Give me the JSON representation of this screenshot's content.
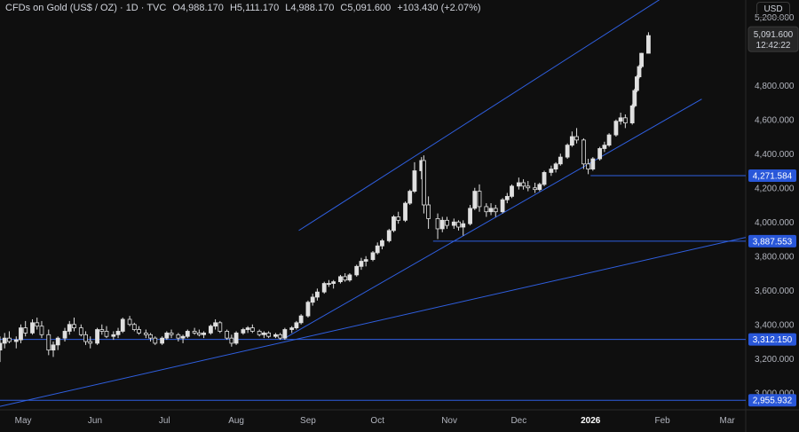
{
  "header": {
    "symbol": "CFDs on Gold (US$ / OZ) · 1D · TVC",
    "open": "O4,988.170",
    "high": "H5,111.170",
    "low": "L4,988.170",
    "close": "C5,091.600",
    "change": "+103.430 (+2.07%)"
  },
  "currency_button": "USD",
  "colors": {
    "background": "#0f0f0f",
    "candle": "#e0e0e0",
    "line": "#2f5fe0",
    "label_bg": "#2957d9",
    "grid_text": "#b2b5be"
  },
  "last_price": {
    "value": "5,091.600",
    "countdown": "12:42:22"
  },
  "price_labels": [
    "4,271.584",
    "3,887.553",
    "3,312.150",
    "2,955.932"
  ],
  "chart_data": {
    "type": "candlestick",
    "title": "",
    "xlabel": "",
    "ylabel": "",
    "ylim": [
      2900,
      5300
    ],
    "xlim": [
      "2025-04-21",
      "2026-03-09"
    ],
    "y_ticks": [
      {
        "value": 3000,
        "label": "3,000.000"
      },
      {
        "value": 3200,
        "label": "3,200.000"
      },
      {
        "value": 3400,
        "label": "3,400.000"
      },
      {
        "value": 3600,
        "label": "3,600.000"
      },
      {
        "value": 3800,
        "label": "3,800.000"
      },
      {
        "value": 4000,
        "label": "4,000.000"
      },
      {
        "value": 4200,
        "label": "4,200.000"
      },
      {
        "value": 4400,
        "label": "4,400.000"
      },
      {
        "value": 4600,
        "label": "4,600.000"
      },
      {
        "value": 4800,
        "label": "4,800.000"
      },
      {
        "value": 5200,
        "label": "5,200.000"
      }
    ],
    "x_ticks": [
      {
        "date": "2025-05-01",
        "label": "May"
      },
      {
        "date": "2025-06-01",
        "label": "Jun"
      },
      {
        "date": "2025-07-01",
        "label": "Jul"
      },
      {
        "date": "2025-08-01",
        "label": "Aug"
      },
      {
        "date": "2025-09-01",
        "label": "Sep"
      },
      {
        "date": "2025-10-01",
        "label": "Oct"
      },
      {
        "date": "2025-11-01",
        "label": "Nov"
      },
      {
        "date": "2025-12-01",
        "label": "Dec"
      },
      {
        "date": "2026-01-01",
        "label": "2026"
      },
      {
        "date": "2026-02-01",
        "label": "Feb"
      },
      {
        "date": "2026-03-01",
        "label": "Mar"
      }
    ],
    "horizontal_levels": [
      {
        "value": 4271.584,
        "from": "2026-01-01"
      },
      {
        "value": 3887.553,
        "from": "2025-10-25"
      },
      {
        "value": 3312.15,
        "from": "2025-04-21"
      },
      {
        "value": 2955.932,
        "from": "2025-04-21"
      }
    ],
    "trendlines": [
      {
        "name": "channel-top",
        "start": [
          "2025-08-28",
          3950
        ],
        "end": [
          "2026-02-03",
          5330
        ]
      },
      {
        "name": "channel-bottom",
        "start": [
          "2025-08-22",
          3320
        ],
        "end": [
          "2026-02-18",
          4720
        ]
      },
      {
        "name": "long-support",
        "start": [
          "2025-04-21",
          2920
        ],
        "end": [
          "2026-03-09",
          3910
        ]
      }
    ],
    "candles": [
      [
        "2025-04-21",
        3250,
        3330,
        3180,
        3290
      ],
      [
        "2025-04-23",
        3290,
        3350,
        3260,
        3320
      ],
      [
        "2025-04-25",
        3320,
        3360,
        3290,
        3300
      ],
      [
        "2025-04-28",
        3300,
        3330,
        3260,
        3310
      ],
      [
        "2025-04-30",
        3310,
        3400,
        3290,
        3380
      ],
      [
        "2025-05-02",
        3380,
        3420,
        3330,
        3350
      ],
      [
        "2025-05-05",
        3350,
        3430,
        3340,
        3410
      ],
      [
        "2025-05-07",
        3410,
        3440,
        3370,
        3390
      ],
      [
        "2025-05-09",
        3390,
        3420,
        3320,
        3340
      ],
      [
        "2025-05-12",
        3340,
        3370,
        3220,
        3250
      ],
      [
        "2025-05-14",
        3250,
        3300,
        3210,
        3280
      ],
      [
        "2025-05-16",
        3280,
        3330,
        3250,
        3320
      ],
      [
        "2025-05-19",
        3320,
        3380,
        3300,
        3360
      ],
      [
        "2025-05-21",
        3360,
        3420,
        3340,
        3400
      ],
      [
        "2025-05-23",
        3400,
        3440,
        3360,
        3380
      ],
      [
        "2025-05-26",
        3380,
        3400,
        3330,
        3340
      ],
      [
        "2025-05-28",
        3340,
        3360,
        3280,
        3300
      ],
      [
        "2025-05-30",
        3300,
        3330,
        3260,
        3290
      ],
      [
        "2025-06-02",
        3290,
        3380,
        3280,
        3370
      ],
      [
        "2025-06-04",
        3370,
        3400,
        3340,
        3360
      ],
      [
        "2025-06-06",
        3360,
        3390,
        3320,
        3330
      ],
      [
        "2025-06-09",
        3330,
        3360,
        3310,
        3340
      ],
      [
        "2025-06-11",
        3340,
        3380,
        3320,
        3360
      ],
      [
        "2025-06-13",
        3360,
        3440,
        3350,
        3430
      ],
      [
        "2025-06-16",
        3430,
        3450,
        3390,
        3400
      ],
      [
        "2025-06-18",
        3400,
        3410,
        3360,
        3370
      ],
      [
        "2025-06-20",
        3370,
        3390,
        3340,
        3350
      ],
      [
        "2025-06-23",
        3350,
        3370,
        3320,
        3340
      ],
      [
        "2025-06-25",
        3340,
        3350,
        3300,
        3320
      ],
      [
        "2025-06-27",
        3320,
        3330,
        3280,
        3290
      ],
      [
        "2025-06-30",
        3290,
        3330,
        3280,
        3320
      ],
      [
        "2025-07-02",
        3320,
        3360,
        3310,
        3350
      ],
      [
        "2025-07-04",
        3350,
        3370,
        3320,
        3340
      ],
      [
        "2025-07-07",
        3340,
        3350,
        3300,
        3320
      ],
      [
        "2025-07-09",
        3320,
        3340,
        3290,
        3330
      ],
      [
        "2025-07-11",
        3330,
        3370,
        3320,
        3360
      ],
      [
        "2025-07-14",
        3360,
        3380,
        3340,
        3350
      ],
      [
        "2025-07-16",
        3350,
        3370,
        3330,
        3340
      ],
      [
        "2025-07-18",
        3340,
        3360,
        3320,
        3350
      ],
      [
        "2025-07-21",
        3350,
        3400,
        3340,
        3390
      ],
      [
        "2025-07-23",
        3390,
        3430,
        3370,
        3410
      ],
      [
        "2025-07-25",
        3410,
        3420,
        3350,
        3360
      ],
      [
        "2025-07-28",
        3360,
        3370,
        3310,
        3320
      ],
      [
        "2025-07-30",
        3320,
        3340,
        3270,
        3290
      ],
      [
        "2025-08-01",
        3290,
        3360,
        3280,
        3350
      ],
      [
        "2025-08-04",
        3350,
        3380,
        3340,
        3370
      ],
      [
        "2025-08-06",
        3370,
        3390,
        3350,
        3380
      ],
      [
        "2025-08-08",
        3380,
        3400,
        3350,
        3360
      ],
      [
        "2025-08-11",
        3360,
        3370,
        3330,
        3340
      ],
      [
        "2025-08-13",
        3340,
        3360,
        3320,
        3350
      ],
      [
        "2025-08-15",
        3350,
        3360,
        3320,
        3330
      ],
      [
        "2025-08-18",
        3330,
        3350,
        3320,
        3340
      ],
      [
        "2025-08-20",
        3340,
        3350,
        3310,
        3320
      ],
      [
        "2025-08-22",
        3320,
        3380,
        3310,
        3370
      ],
      [
        "2025-08-25",
        3370,
        3390,
        3350,
        3380
      ],
      [
        "2025-08-27",
        3380,
        3420,
        3370,
        3410
      ],
      [
        "2025-08-29",
        3410,
        3460,
        3400,
        3450
      ],
      [
        "2025-09-01",
        3450,
        3540,
        3440,
        3530
      ],
      [
        "2025-09-03",
        3530,
        3580,
        3510,
        3560
      ],
      [
        "2025-09-05",
        3560,
        3610,
        3540,
        3590
      ],
      [
        "2025-09-08",
        3590,
        3650,
        3580,
        3640
      ],
      [
        "2025-09-10",
        3640,
        3660,
        3620,
        3640
      ],
      [
        "2025-09-12",
        3640,
        3660,
        3610,
        3650
      ],
      [
        "2025-09-15",
        3650,
        3690,
        3640,
        3680
      ],
      [
        "2025-09-17",
        3680,
        3700,
        3650,
        3660
      ],
      [
        "2025-09-19",
        3660,
        3700,
        3650,
        3690
      ],
      [
        "2025-09-22",
        3690,
        3750,
        3680,
        3740
      ],
      [
        "2025-09-24",
        3740,
        3790,
        3720,
        3770
      ],
      [
        "2025-09-26",
        3770,
        3800,
        3740,
        3780
      ],
      [
        "2025-09-29",
        3780,
        3830,
        3770,
        3820
      ],
      [
        "2025-10-01",
        3820,
        3880,
        3810,
        3860
      ],
      [
        "2025-10-03",
        3860,
        3900,
        3840,
        3890
      ],
      [
        "2025-10-06",
        3890,
        3960,
        3880,
        3950
      ],
      [
        "2025-10-08",
        3950,
        4040,
        3940,
        4030
      ],
      [
        "2025-10-10",
        4030,
        4060,
        3990,
        4010
      ],
      [
        "2025-10-13",
        4010,
        4120,
        4000,
        4110
      ],
      [
        "2025-10-15",
        4110,
        4190,
        4100,
        4180
      ],
      [
        "2025-10-17",
        4180,
        4350,
        4170,
        4300
      ],
      [
        "2025-10-20",
        4300,
        4380,
        4250,
        4360
      ],
      [
        "2025-10-21",
        4360,
        4390,
        4050,
        4100
      ],
      [
        "2025-10-23",
        4100,
        4150,
        3960,
        4020
      ],
      [
        "2025-10-27",
        4020,
        4050,
        3900,
        3960
      ],
      [
        "2025-10-29",
        3960,
        4030,
        3940,
        4010
      ],
      [
        "2025-10-31",
        4010,
        4030,
        3960,
        3980
      ],
      [
        "2025-11-03",
        3980,
        4020,
        3960,
        4000
      ],
      [
        "2025-11-05",
        4000,
        4010,
        3950,
        3970
      ],
      [
        "2025-11-07",
        3970,
        4010,
        3920,
        3990
      ],
      [
        "2025-11-10",
        3990,
        4100,
        3980,
        4080
      ],
      [
        "2025-11-12",
        4080,
        4200,
        4070,
        4180
      ],
      [
        "2025-11-14",
        4180,
        4220,
        4060,
        4090
      ],
      [
        "2025-11-17",
        4090,
        4110,
        4030,
        4060
      ],
      [
        "2025-11-19",
        4060,
        4110,
        4040,
        4080
      ],
      [
        "2025-11-21",
        4080,
        4100,
        4030,
        4060
      ],
      [
        "2025-11-24",
        4060,
        4140,
        4050,
        4130
      ],
      [
        "2025-11-26",
        4130,
        4170,
        4110,
        4150
      ],
      [
        "2025-11-28",
        4150,
        4220,
        4140,
        4210
      ],
      [
        "2025-12-01",
        4210,
        4260,
        4190,
        4230
      ],
      [
        "2025-12-03",
        4230,
        4250,
        4190,
        4210
      ],
      [
        "2025-12-05",
        4210,
        4240,
        4180,
        4200
      ],
      [
        "2025-12-08",
        4200,
        4230,
        4170,
        4190
      ],
      [
        "2025-12-10",
        4190,
        4230,
        4180,
        4220
      ],
      [
        "2025-12-12",
        4220,
        4300,
        4210,
        4290
      ],
      [
        "2025-12-15",
        4290,
        4330,
        4270,
        4310
      ],
      [
        "2025-12-17",
        4310,
        4350,
        4290,
        4340
      ],
      [
        "2025-12-19",
        4340,
        4400,
        4330,
        4380
      ],
      [
        "2025-12-22",
        4380,
        4460,
        4370,
        4450
      ],
      [
        "2025-12-24",
        4450,
        4530,
        4440,
        4500
      ],
      [
        "2025-12-26",
        4500,
        4550,
        4460,
        4480
      ],
      [
        "2025-12-29",
        4480,
        4490,
        4310,
        4340
      ],
      [
        "2025-12-31",
        4340,
        4370,
        4280,
        4310
      ],
      [
        "2026-01-02",
        4310,
        4380,
        4300,
        4370
      ],
      [
        "2026-01-05",
        4370,
        4440,
        4360,
        4430
      ],
      [
        "2026-01-07",
        4430,
        4470,
        4410,
        4450
      ],
      [
        "2026-01-09",
        4450,
        4520,
        4440,
        4510
      ],
      [
        "2026-01-12",
        4510,
        4600,
        4500,
        4590
      ],
      [
        "2026-01-14",
        4590,
        4640,
        4570,
        4610
      ],
      [
        "2026-01-16",
        4610,
        4630,
        4550,
        4580
      ],
      [
        "2026-01-19",
        4580,
        4690,
        4570,
        4680
      ],
      [
        "2026-01-20",
        4680,
        4780,
        4670,
        4770
      ],
      [
        "2026-01-21",
        4770,
        4860,
        4760,
        4850
      ],
      [
        "2026-01-22",
        4850,
        4920,
        4840,
        4910
      ],
      [
        "2026-01-23",
        4910,
        4990,
        4900,
        4988
      ],
      [
        "2026-01-26",
        4988.17,
        5111.17,
        4988.17,
        5091.6
      ]
    ]
  }
}
